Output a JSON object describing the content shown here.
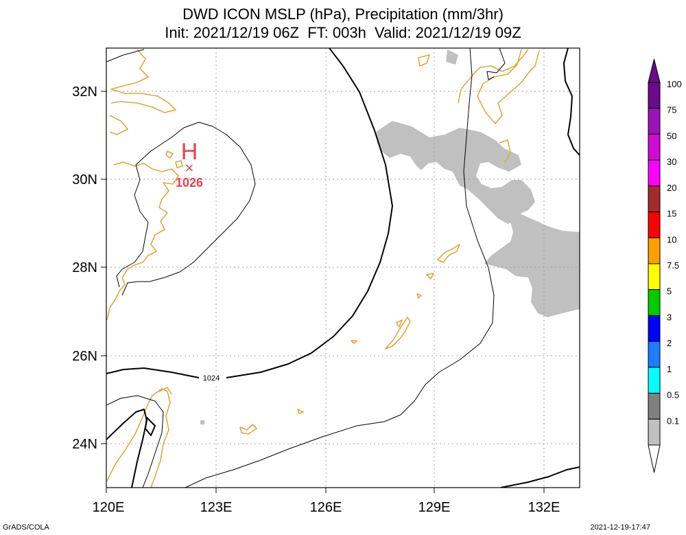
{
  "title": {
    "line1": "DWD ICON MSLP (hPa), Precipitation (mm/3hr)",
    "line2": "Init: 2021/12/19 06Z  FT: 003h  Valid: 2021/12/19 09Z"
  },
  "map": {
    "lon_labels": [
      "120E",
      "123E",
      "126E",
      "129E",
      "132E"
    ],
    "lat_labels": [
      "32N",
      "30N",
      "28N",
      "26N",
      "24N"
    ],
    "isobar_label": "1024",
    "high_center": {
      "symbol": "H",
      "marker": "×",
      "value": "1026"
    },
    "colors": {
      "coastline": "#e0a83a",
      "isobar": "#000000",
      "precip_light": "#c0c0c0",
      "high_marker": "#e8424d",
      "grid": "#a0a0a0"
    }
  },
  "colorbar": {
    "labels": [
      "100",
      "75",
      "50",
      "30",
      "20",
      "15",
      "10",
      "7.5",
      "5",
      "3",
      "2",
      "1",
      "0.5",
      "0.1"
    ],
    "colors": [
      "#6a0a8c",
      "#9b11b8",
      "#d20ad2",
      "#ff00ff",
      "#a52a2a",
      "#ff0000",
      "#ff9f00",
      "#ffff00",
      "#00cc00",
      "#0000ff",
      "#1e7cff",
      "#00ffff",
      "#808080",
      "#c0c0c0"
    ]
  },
  "footer": {
    "credit": "GrADS/COLA",
    "timestamp": "2021-12-19-17:47"
  }
}
